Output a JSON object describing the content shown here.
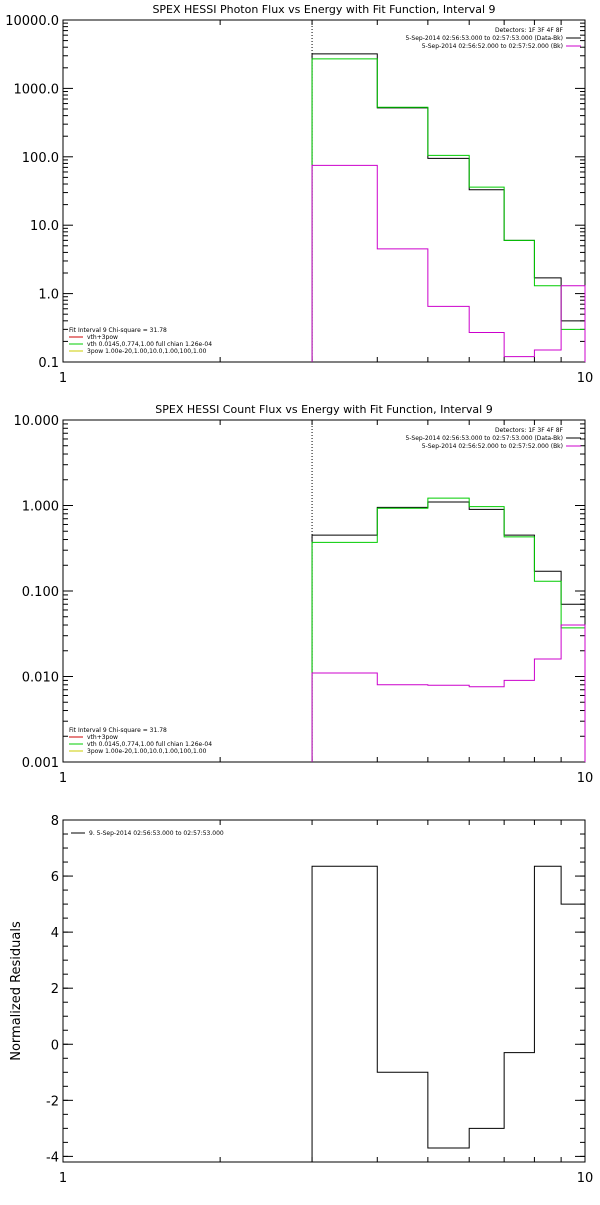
{
  "chart_data": [
    {
      "type": "line",
      "title": "SPEX HESSI Photon Flux vs Energy with Fit Function, Interval 9",
      "xscale": "log",
      "yscale": "log",
      "xlim": [
        1,
        10
      ],
      "ylim": [
        0.1,
        10000
      ],
      "x_tick_labels": [
        "1",
        "10"
      ],
      "y_tick_labels": [
        "0.1",
        "1.0",
        "10.0",
        "100.0",
        "1000.0",
        "10000.0"
      ],
      "y_tick_values": [
        0.1,
        1,
        10,
        100,
        1000,
        10000
      ],
      "vline_x": 3.0,
      "legend_top": {
        "header": "Detectors: 1F 3F 4F 8F",
        "entries": [
          {
            "text": "5-Sep-2014 02:56:53.000 to 02:57:53.000 (Data-Bk)",
            "color": "#000000"
          },
          {
            "text": "5-Sep-2014 02:56:52.000 to 02:57:52.000 (Bk)",
            "color": "#cc00cc"
          }
        ]
      },
      "legend_bottom": {
        "header": "Fit Interval 9   Chi-square = 31.78",
        "entries": [
          {
            "text": "vth+3pow",
            "color": "#cc0000"
          },
          {
            "text": "vth 0.0145,0.774,1.00  full chian 1.26e-04",
            "color": "#00cc00"
          },
          {
            "text": "3pow 1.00e-20,1.00,10.0,1.00,100,1.00",
            "color": "#cccc00"
          }
        ]
      },
      "bin_edges": [
        3.0,
        4.0,
        5.0,
        6.0,
        7.0,
        8.0,
        9.0,
        10.0
      ],
      "series": [
        {
          "color": "#000000",
          "values": [
            3200,
            520,
            95,
            33,
            6,
            1.7,
            0.4
          ]
        },
        {
          "color": "#00cc00",
          "values": [
            2700,
            530,
            105,
            36,
            6,
            1.3,
            0.3
          ]
        },
        {
          "color": "#cc00cc",
          "values": [
            75,
            4.5,
            0.65,
            0.27,
            0.12,
            0.15,
            1.3
          ]
        }
      ]
    },
    {
      "type": "line",
      "title": "SPEX HESSI Count Flux vs Energy with Fit Function, Interval 9",
      "xscale": "log",
      "yscale": "log",
      "xlim": [
        1,
        10
      ],
      "ylim": [
        0.001,
        10
      ],
      "x_tick_labels": [
        "1",
        "10"
      ],
      "y_tick_labels": [
        "0.001",
        "0.010",
        "0.100",
        "1.000",
        "10.000"
      ],
      "y_tick_values": [
        0.001,
        0.01,
        0.1,
        1,
        10
      ],
      "vline_x": 3.0,
      "legend_top": {
        "header": "Detectors: 1F 3F 4F 8F",
        "entries": [
          {
            "text": "5-Sep-2014 02:56:53.000 to 02:57:53.000 (Data-Bk)",
            "color": "#000000"
          },
          {
            "text": "5-Sep-2014 02:56:52.000 to 02:57:52.000 (Bk)",
            "color": "#cc00cc"
          }
        ]
      },
      "legend_bottom": {
        "header": "Fit Interval 9   Chi-square = 31.78",
        "entries": [
          {
            "text": "vth+3pow",
            "color": "#cc0000"
          },
          {
            "text": "vth 0.0145,0.774,1.00  full chian 1.26e-04",
            "color": "#00cc00"
          },
          {
            "text": "3pow 1.00e-20,1.00,10.0,1.00,100,1.00",
            "color": "#cccc00"
          }
        ]
      },
      "bin_edges": [
        3.0,
        4.0,
        5.0,
        6.0,
        7.0,
        8.0,
        9.0,
        10.0
      ],
      "series": [
        {
          "color": "#000000",
          "values": [
            0.45,
            0.95,
            1.1,
            0.9,
            0.45,
            0.17,
            0.07
          ]
        },
        {
          "color": "#00cc00",
          "values": [
            0.37,
            0.93,
            1.22,
            0.97,
            0.43,
            0.13,
            0.037
          ]
        },
        {
          "color": "#cc00cc",
          "values": [
            0.011,
            0.008,
            0.0079,
            0.0076,
            0.009,
            0.016,
            0.04
          ]
        }
      ]
    },
    {
      "type": "line",
      "title": "",
      "xscale": "log",
      "yscale": "linear",
      "xlim": [
        1,
        10
      ],
      "ylim": [
        -4.2,
        8
      ],
      "ylabel": "Normalized Residuals",
      "x_tick_labels": [
        "1",
        "10"
      ],
      "y_tick_labels": [
        "-4",
        "-2",
        "0",
        "2",
        "4",
        "6",
        "8"
      ],
      "y_tick_values": [
        -4,
        -2,
        0,
        2,
        4,
        6,
        8
      ],
      "legend_top_left": {
        "entries": [
          {
            "text": "9. 5-Sep-2014 02:56:53.000 to 02:57:53.000",
            "color": "#000000"
          }
        ]
      },
      "bin_edges": [
        3.0,
        4.0,
        5.0,
        6.0,
        7.0,
        8.0,
        9.0,
        10.0
      ],
      "series": [
        {
          "color": "#000000",
          "values": [
            6.35,
            -1.0,
            -3.7,
            -3.0,
            -0.3,
            6.35,
            5.0
          ]
        }
      ]
    }
  ]
}
